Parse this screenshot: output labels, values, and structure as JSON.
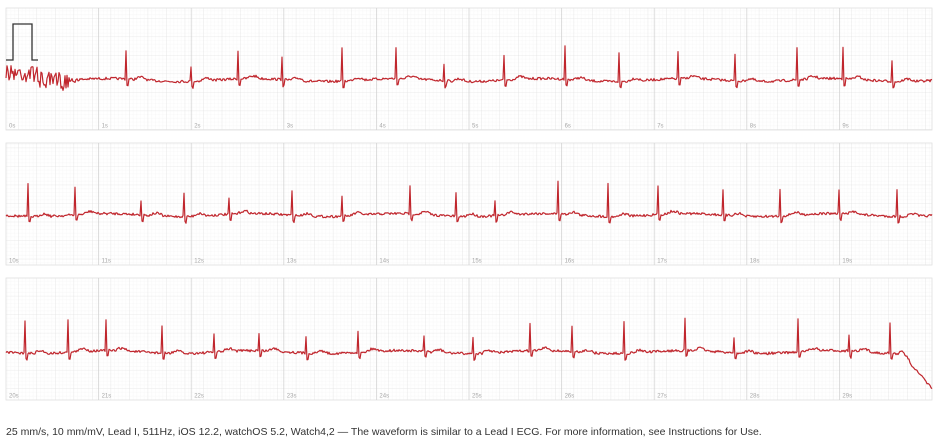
{
  "strips": [
    {
      "labels": [
        "0s",
        "1s",
        "2s",
        "3s",
        "4s",
        "5s",
        "6s",
        "7s",
        "8s",
        "9s"
      ]
    },
    {
      "labels": [
        "10s",
        "11s",
        "12s",
        "13s",
        "14s",
        "15s",
        "16s",
        "17s",
        "18s",
        "19s"
      ]
    },
    {
      "labels": [
        "20s",
        "21s",
        "22s",
        "23s",
        "24s",
        "25s",
        "26s",
        "27s",
        "28s",
        "29s"
      ]
    }
  ],
  "footer": "25 mm/s, 10 mm/mV, Lead I, 511Hz, iOS 12.2, watchOS 5.2, Watch4,2 — The waveform is similar to a Lead I ECG. For more information, see Instructions for Use."
}
